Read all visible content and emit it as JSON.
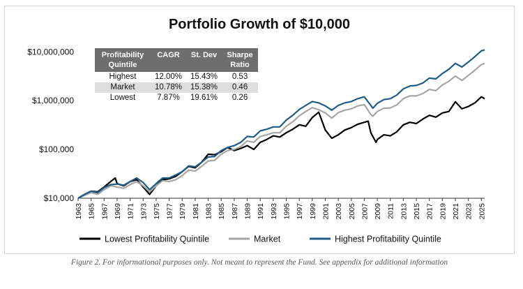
{
  "caption": "Figure 2. For informational purposes only. Not meant to represent the Fund. See appendix for additional information",
  "table": {
    "headers": [
      "Profitability Quintile",
      "CAGR",
      "St. Dev",
      "Sharpe Ratio"
    ],
    "rows": [
      {
        "label": "Highest",
        "cagr": "12.00%",
        "stdev": "15.43%",
        "sharpe": "0.53"
      },
      {
        "label": "Market",
        "cagr": "10.78%",
        "stdev": "15.38%",
        "sharpe": "0.46"
      },
      {
        "label": "Lowest",
        "cagr": "7.87%",
        "stdev": "19.61%",
        "sharpe": "0.26"
      }
    ]
  },
  "chart_data": {
    "type": "line",
    "title": "Portfolio Growth of $10,000",
    "xlabel": "",
    "ylabel": "",
    "y_scale": "log",
    "ylim": [
      10000,
      15000000
    ],
    "xlim": [
      1963,
      2025.5
    ],
    "yticks": [
      {
        "value": 10000,
        "label": "$10,000"
      },
      {
        "value": 100000,
        "label": "$100,000"
      },
      {
        "value": 1000000,
        "label": "$1,000,000"
      },
      {
        "value": 10000000,
        "label": "$10,000,000"
      }
    ],
    "xticks": [
      "1963",
      "1965",
      "1967",
      "1969",
      "1971",
      "1973",
      "1975",
      "1977",
      "1979",
      "1981",
      "1983",
      "1985",
      "1987",
      "1989",
      "1991",
      "1993",
      "1995",
      "1997",
      "1999",
      "2001",
      "2003",
      "2005",
      "2007",
      "2009",
      "2011",
      "2013",
      "2015",
      "2017",
      "2019",
      "2021",
      "2023",
      "2025"
    ],
    "grid": false,
    "legend_position": "bottom",
    "series": [
      {
        "name": "Lowest Profitability Quintile",
        "color": "#000000",
        "points": [
          [
            1963,
            10000
          ],
          [
            1964,
            12000
          ],
          [
            1965,
            14000
          ],
          [
            1966,
            13500
          ],
          [
            1967,
            17000
          ],
          [
            1968,
            22000
          ],
          [
            1968.7,
            26000
          ],
          [
            1969,
            20000
          ],
          [
            1970,
            18000
          ],
          [
            1971,
            22000
          ],
          [
            1972,
            24000
          ],
          [
            1973,
            17000
          ],
          [
            1974,
            12000
          ],
          [
            1975,
            18000
          ],
          [
            1976,
            24000
          ],
          [
            1977,
            25000
          ],
          [
            1978,
            28000
          ],
          [
            1979,
            35000
          ],
          [
            1980,
            45000
          ],
          [
            1981,
            42000
          ],
          [
            1982,
            55000
          ],
          [
            1983,
            80000
          ],
          [
            1984,
            78000
          ],
          [
            1985,
            90000
          ],
          [
            1986,
            110000
          ],
          [
            1987,
            95000
          ],
          [
            1988,
            105000
          ],
          [
            1989,
            120000
          ],
          [
            1990,
            100000
          ],
          [
            1991,
            140000
          ],
          [
            1992,
            160000
          ],
          [
            1993,
            190000
          ],
          [
            1994,
            180000
          ],
          [
            1995,
            220000
          ],
          [
            1996,
            260000
          ],
          [
            1997,
            320000
          ],
          [
            1998,
            300000
          ],
          [
            1999,
            450000
          ],
          [
            2000,
            580000
          ],
          [
            2000.7,
            320000
          ],
          [
            2001,
            250000
          ],
          [
            2002,
            170000
          ],
          [
            2003,
            200000
          ],
          [
            2004,
            250000
          ],
          [
            2005,
            280000
          ],
          [
            2006,
            330000
          ],
          [
            2007,
            360000
          ],
          [
            2007.6,
            380000
          ],
          [
            2008,
            220000
          ],
          [
            2008.8,
            140000
          ],
          [
            2009,
            160000
          ],
          [
            2010,
            200000
          ],
          [
            2011,
            190000
          ],
          [
            2012,
            230000
          ],
          [
            2013,
            320000
          ],
          [
            2014,
            360000
          ],
          [
            2015,
            340000
          ],
          [
            2016,
            420000
          ],
          [
            2017,
            500000
          ],
          [
            2018,
            460000
          ],
          [
            2019,
            560000
          ],
          [
            2020,
            600000
          ],
          [
            2021,
            950000
          ],
          [
            2022,
            680000
          ],
          [
            2023,
            760000
          ],
          [
            2024,
            900000
          ],
          [
            2025,
            1200000
          ],
          [
            2025.5,
            1100000
          ]
        ]
      },
      {
        "name": "Market",
        "color": "#a6a6a6",
        "points": [
          [
            1963,
            10000
          ],
          [
            1964,
            11500
          ],
          [
            1965,
            13000
          ],
          [
            1966,
            12000
          ],
          [
            1967,
            15000
          ],
          [
            1968,
            18000
          ],
          [
            1969,
            17000
          ],
          [
            1970,
            16000
          ],
          [
            1971,
            19000
          ],
          [
            1972,
            22000
          ],
          [
            1973,
            18000
          ],
          [
            1974,
            13500
          ],
          [
            1975,
            18000
          ],
          [
            1976,
            23000
          ],
          [
            1977,
            22000
          ],
          [
            1978,
            24000
          ],
          [
            1979,
            29000
          ],
          [
            1980,
            38000
          ],
          [
            1981,
            36000
          ],
          [
            1982,
            45000
          ],
          [
            1983,
            58000
          ],
          [
            1984,
            60000
          ],
          [
            1985,
            80000
          ],
          [
            1986,
            95000
          ],
          [
            1987,
            100000
          ],
          [
            1988,
            115000
          ],
          [
            1989,
            150000
          ],
          [
            1990,
            140000
          ],
          [
            1991,
            185000
          ],
          [
            1992,
            200000
          ],
          [
            1993,
            220000
          ],
          [
            1994,
            220000
          ],
          [
            1995,
            300000
          ],
          [
            1996,
            370000
          ],
          [
            1997,
            490000
          ],
          [
            1998,
            600000
          ],
          [
            1999,
            720000
          ],
          [
            2000,
            650000
          ],
          [
            2001,
            560000
          ],
          [
            2002,
            440000
          ],
          [
            2003,
            570000
          ],
          [
            2004,
            640000
          ],
          [
            2005,
            680000
          ],
          [
            2006,
            780000
          ],
          [
            2007,
            830000
          ],
          [
            2008,
            520000
          ],
          [
            2008.3,
            480000
          ],
          [
            2009,
            600000
          ],
          [
            2010,
            700000
          ],
          [
            2011,
            710000
          ],
          [
            2012,
            820000
          ],
          [
            2013,
            1100000
          ],
          [
            2014,
            1250000
          ],
          [
            2015,
            1250000
          ],
          [
            2016,
            1400000
          ],
          [
            2017,
            1700000
          ],
          [
            2018,
            1600000
          ],
          [
            2019,
            2100000
          ],
          [
            2020,
            2500000
          ],
          [
            2021,
            3200000
          ],
          [
            2022,
            2600000
          ],
          [
            2023,
            3300000
          ],
          [
            2024,
            4200000
          ],
          [
            2025,
            5500000
          ],
          [
            2025.5,
            5800000
          ]
        ]
      },
      {
        "name": "Highest Profitability Quintile",
        "color": "#1f5c85",
        "points": [
          [
            1963,
            10000
          ],
          [
            1964,
            12000
          ],
          [
            1965,
            14000
          ],
          [
            1966,
            13000
          ],
          [
            1967,
            16500
          ],
          [
            1968,
            19000
          ],
          [
            1969,
            19500
          ],
          [
            1970,
            18500
          ],
          [
            1971,
            22000
          ],
          [
            1972,
            26000
          ],
          [
            1973,
            21000
          ],
          [
            1974,
            15000
          ],
          [
            1975,
            20000
          ],
          [
            1976,
            26000
          ],
          [
            1977,
            26000
          ],
          [
            1978,
            30000
          ],
          [
            1979,
            35000
          ],
          [
            1980,
            46000
          ],
          [
            1981,
            44000
          ],
          [
            1982,
            55000
          ],
          [
            1983,
            70000
          ],
          [
            1984,
            72000
          ],
          [
            1985,
            95000
          ],
          [
            1986,
            110000
          ],
          [
            1987,
            120000
          ],
          [
            1988,
            140000
          ],
          [
            1989,
            185000
          ],
          [
            1990,
            180000
          ],
          [
            1991,
            240000
          ],
          [
            1992,
            260000
          ],
          [
            1993,
            290000
          ],
          [
            1994,
            290000
          ],
          [
            1995,
            400000
          ],
          [
            1996,
            500000
          ],
          [
            1997,
            660000
          ],
          [
            1998,
            800000
          ],
          [
            1999,
            960000
          ],
          [
            2000,
            900000
          ],
          [
            2001,
            780000
          ],
          [
            2002,
            640000
          ],
          [
            2003,
            800000
          ],
          [
            2004,
            900000
          ],
          [
            2005,
            960000
          ],
          [
            2006,
            1100000
          ],
          [
            2007,
            1200000
          ],
          [
            2008,
            800000
          ],
          [
            2008.3,
            700000
          ],
          [
            2009,
            880000
          ],
          [
            2010,
            1050000
          ],
          [
            2011,
            1100000
          ],
          [
            2012,
            1300000
          ],
          [
            2013,
            1750000
          ],
          [
            2014,
            2000000
          ],
          [
            2015,
            2050000
          ],
          [
            2016,
            2300000
          ],
          [
            2017,
            2900000
          ],
          [
            2018,
            2800000
          ],
          [
            2019,
            3600000
          ],
          [
            2020,
            4400000
          ],
          [
            2021,
            5800000
          ],
          [
            2022,
            4900000
          ],
          [
            2023,
            6200000
          ],
          [
            2024,
            8000000
          ],
          [
            2025,
            10500000
          ],
          [
            2025.5,
            11000000
          ]
        ]
      }
    ]
  }
}
